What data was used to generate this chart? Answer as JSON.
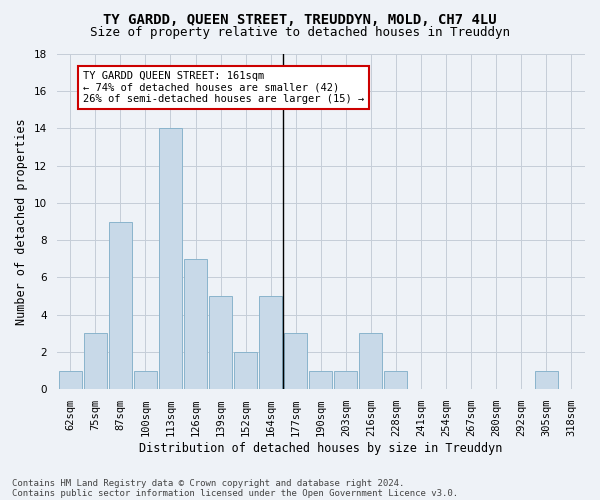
{
  "title": "TY GARDD, QUEEN STREET, TREUDDYN, MOLD, CH7 4LU",
  "subtitle": "Size of property relative to detached houses in Treuddyn",
  "xlabel": "Distribution of detached houses by size in Treuddyn",
  "ylabel": "Number of detached properties",
  "bin_labels": [
    "62sqm",
    "75sqm",
    "87sqm",
    "100sqm",
    "113sqm",
    "126sqm",
    "139sqm",
    "152sqm",
    "164sqm",
    "177sqm",
    "190sqm",
    "203sqm",
    "216sqm",
    "228sqm",
    "241sqm",
    "254sqm",
    "267sqm",
    "280sqm",
    "292sqm",
    "305sqm",
    "318sqm"
  ],
  "bar_values": [
    1,
    3,
    9,
    1,
    14,
    7,
    5,
    2,
    5,
    3,
    1,
    1,
    3,
    1,
    0,
    0,
    0,
    0,
    0,
    1,
    0
  ],
  "bar_color": "#c8d9e8",
  "bar_edge_color": "#8ab4cc",
  "vline_x": 8.5,
  "annotation_title": "TY GARDD QUEEN STREET: 161sqm",
  "annotation_line1": "← 74% of detached houses are smaller (42)",
  "annotation_line2": "26% of semi-detached houses are larger (15) →",
  "annotation_box_color": "#ffffff",
  "annotation_border_color": "#cc0000",
  "ylim": [
    0,
    18
  ],
  "yticks": [
    0,
    2,
    4,
    6,
    8,
    10,
    12,
    14,
    16,
    18
  ],
  "footer1": "Contains HM Land Registry data © Crown copyright and database right 2024.",
  "footer2": "Contains public sector information licensed under the Open Government Licence v3.0.",
  "bg_color": "#eef2f7",
  "plot_bg_color": "#eef2f7",
  "grid_color": "#c5cdd8",
  "title_fontsize": 10,
  "subtitle_fontsize": 9,
  "axis_label_fontsize": 8.5,
  "tick_fontsize": 7.5,
  "annotation_fontsize": 7.5,
  "footer_fontsize": 6.5
}
